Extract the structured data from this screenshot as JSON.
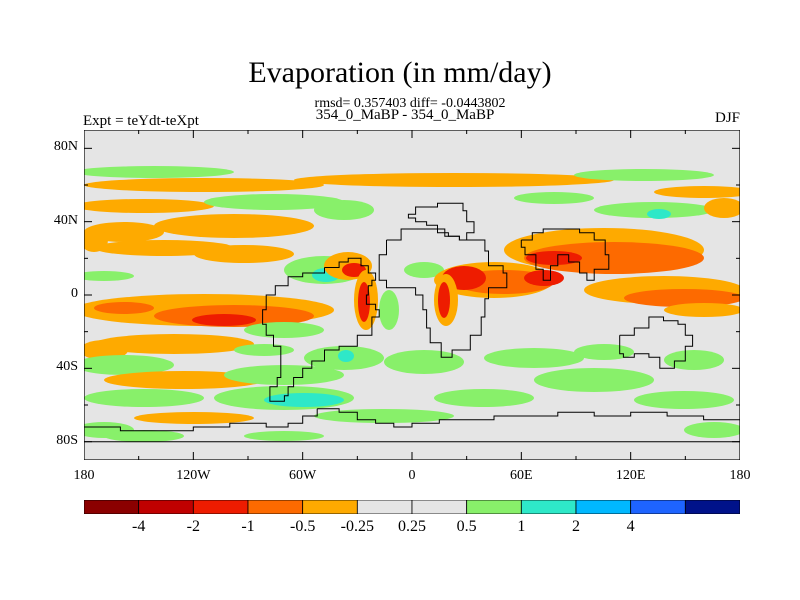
{
  "figure": {
    "title": "Evaporation (in mm/day)",
    "stats": "rmsd= 0.357403 diff= -0.0443802",
    "subtitle": "354_0_MaBP - 354_0_MaBP",
    "left_label": "Expt = teYdt-teXpt",
    "right_label": "DJF"
  },
  "axes": {
    "lat_ticks": [
      {
        "value": 80,
        "label": "80N"
      },
      {
        "value": 40,
        "label": "40N"
      },
      {
        "value": 0,
        "label": "0"
      },
      {
        "value": -40,
        "label": "40S"
      },
      {
        "value": -80,
        "label": "80S"
      }
    ],
    "lon_ticks": [
      {
        "value": -180,
        "label": "180"
      },
      {
        "value": -120,
        "label": "120W"
      },
      {
        "value": -60,
        "label": "60W"
      },
      {
        "value": 0,
        "label": "0"
      },
      {
        "value": 60,
        "label": "60E"
      },
      {
        "value": 120,
        "label": "120E"
      },
      {
        "value": 180,
        "label": "180"
      }
    ]
  },
  "colorbar": {
    "colors": [
      "#8b0000",
      "#c00000",
      "#ee1c00",
      "#fd6a00",
      "#feaa00",
      "#e5e5e5",
      "#e5e5e5",
      "#88f06a",
      "#2ee8c8",
      "#00b8ff",
      "#1e64ff",
      "#00128a"
    ],
    "labels": [
      "-4",
      "-2",
      "-1",
      "-0.5",
      "-0.25",
      "0.25",
      "0.5",
      "1",
      "2",
      "4"
    ]
  },
  "chart_data": {
    "type": "heatmap",
    "title": "Evaporation (in mm/day)",
    "xlim": [
      -180,
      180
    ],
    "ylim": [
      -90,
      90
    ],
    "levels": [
      -4,
      -2,
      -1,
      -0.5,
      -0.25,
      0.25,
      0.5,
      1,
      2,
      4
    ],
    "continent_outline": [
      [
        [
          -48,
          15
        ],
        [
          -40,
          18
        ],
        [
          -35,
          20
        ],
        [
          -30,
          20
        ],
        [
          -28,
          16
        ],
        [
          -24,
          15
        ],
        [
          -24,
          12
        ],
        [
          -20,
          10
        ],
        [
          -20,
          8
        ],
        [
          -22,
          5
        ],
        [
          -24,
          0
        ],
        [
          -25,
          -5
        ],
        [
          -20,
          -8
        ],
        [
          -18,
          -12
        ],
        [
          -22,
          -16
        ],
        [
          -22,
          -22
        ],
        [
          -30,
          -28
        ],
        [
          -40,
          -30
        ],
        [
          -48,
          -36
        ],
        [
          -55,
          -40
        ],
        [
          -60,
          -45
        ],
        [
          -65,
          -50
        ],
        [
          -68,
          -55
        ],
        [
          -70,
          -58
        ],
        [
          -78,
          -56
        ],
        [
          -78,
          -50
        ],
        [
          -74,
          -45
        ],
        [
          -72,
          -38
        ],
        [
          -72,
          -28
        ],
        [
          -76,
          -22
        ],
        [
          -80,
          -16
        ],
        [
          -82,
          -8
        ],
        [
          -80,
          0
        ],
        [
          -75,
          5
        ],
        [
          -68,
          10
        ],
        [
          -60,
          12
        ],
        [
          -52,
          12
        ],
        [
          -48,
          15
        ]
      ],
      [
        [
          -52,
          -62
        ],
        [
          -40,
          -64
        ],
        [
          -30,
          -68
        ],
        [
          -20,
          -70
        ],
        [
          -10,
          -72
        ],
        [
          0,
          -70
        ],
        [
          15,
          -68
        ],
        [
          30,
          -68
        ],
        [
          45,
          -66
        ],
        [
          60,
          -66
        ],
        [
          80,
          -64
        ],
        [
          100,
          -66
        ],
        [
          120,
          -64
        ],
        [
          140,
          -66
        ],
        [
          160,
          -68
        ],
        [
          180,
          -72
        ],
        [
          180,
          -80
        ],
        [
          -180,
          -80
        ],
        [
          -180,
          -72
        ],
        [
          -160,
          -74
        ],
        [
          -140,
          -74
        ],
        [
          -120,
          -72
        ],
        [
          -100,
          -70
        ],
        [
          -80,
          -72
        ],
        [
          -68,
          -70
        ],
        [
          -60,
          -66
        ],
        [
          -52,
          -62
        ]
      ],
      [
        [
          10,
          48
        ],
        [
          14,
          50
        ],
        [
          22,
          50
        ],
        [
          28,
          46
        ],
        [
          30,
          40
        ],
        [
          34,
          34
        ],
        [
          30,
          30
        ],
        [
          26,
          32
        ],
        [
          20,
          34
        ],
        [
          14,
          38
        ],
        [
          8,
          40
        ],
        [
          2,
          42
        ],
        [
          -2,
          44
        ],
        [
          2,
          48
        ],
        [
          10,
          48
        ]
      ],
      [
        [
          -14,
          30
        ],
        [
          -6,
          36
        ],
        [
          2,
          36
        ],
        [
          10,
          36
        ],
        [
          18,
          32
        ],
        [
          26,
          30
        ],
        [
          34,
          30
        ],
        [
          40,
          24
        ],
        [
          42,
          16
        ],
        [
          50,
          12
        ],
        [
          52,
          4
        ],
        [
          42,
          -2
        ],
        [
          40,
          -12
        ],
        [
          38,
          -22
        ],
        [
          32,
          -30
        ],
        [
          22,
          -34
        ],
        [
          16,
          -26
        ],
        [
          10,
          -18
        ],
        [
          8,
          -8
        ],
        [
          6,
          0
        ],
        [
          2,
          4
        ],
        [
          -6,
          4
        ],
        [
          -14,
          8
        ],
        [
          -18,
          14
        ],
        [
          -18,
          22
        ],
        [
          -14,
          30
        ]
      ],
      [
        [
          60,
          30
        ],
        [
          66,
          34
        ],
        [
          72,
          36
        ],
        [
          80,
          36
        ],
        [
          92,
          34
        ],
        [
          100,
          30
        ],
        [
          106,
          22
        ],
        [
          108,
          14
        ],
        [
          100,
          8
        ],
        [
          96,
          12
        ],
        [
          92,
          18
        ],
        [
          86,
          22
        ],
        [
          80,
          16
        ],
        [
          76,
          8
        ],
        [
          72,
          14
        ],
        [
          68,
          22
        ],
        [
          62,
          26
        ],
        [
          60,
          30
        ]
      ],
      [
        [
          114,
          -22
        ],
        [
          122,
          -18
        ],
        [
          130,
          -12
        ],
        [
          138,
          -14
        ],
        [
          146,
          -16
        ],
        [
          150,
          -22
        ],
        [
          154,
          -28
        ],
        [
          150,
          -36
        ],
        [
          144,
          -40
        ],
        [
          136,
          -34
        ],
        [
          130,
          -32
        ],
        [
          122,
          -34
        ],
        [
          116,
          -32
        ],
        [
          114,
          -26
        ],
        [
          114,
          -22
        ]
      ]
    ]
  }
}
